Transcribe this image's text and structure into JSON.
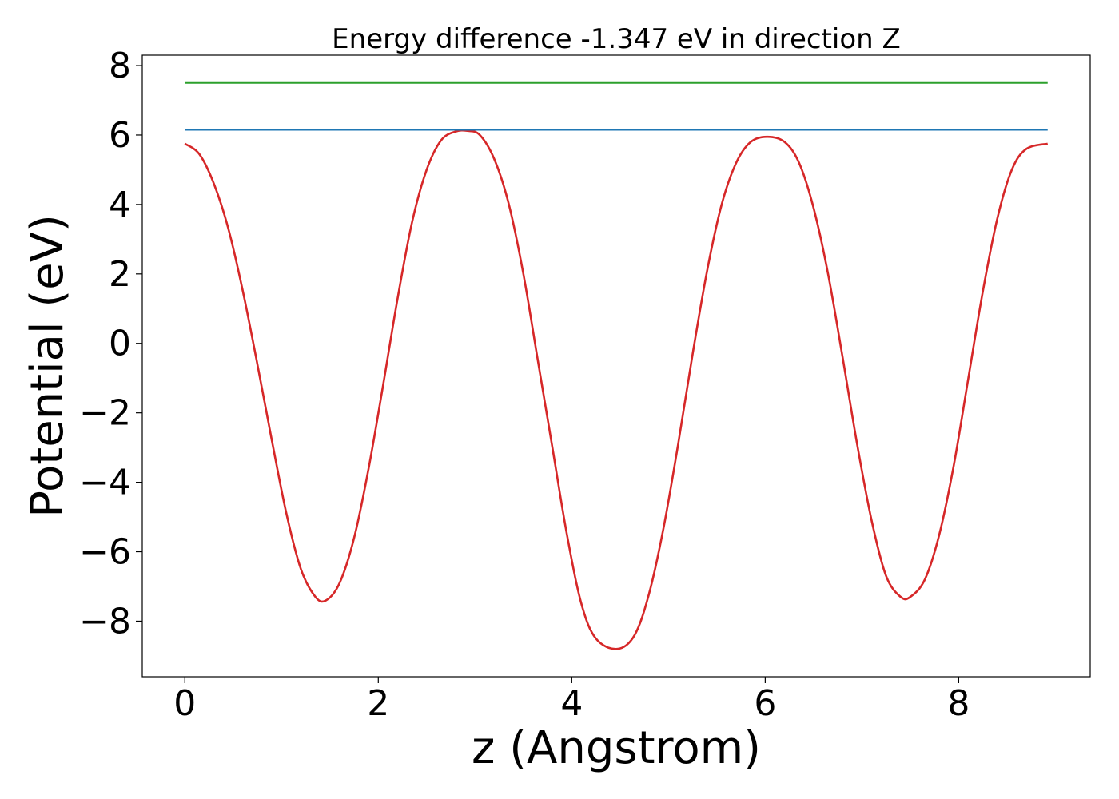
{
  "chart_data": {
    "type": "line",
    "title": "Energy difference -1.347 eV in direction Z",
    "xlabel": "z (Angstrom)",
    "ylabel": "Potential (eV)",
    "xlim": [
      -0.44,
      9.36
    ],
    "ylim": [
      -9.6,
      8.3
    ],
    "x_ticks": [
      0,
      2,
      4,
      6,
      8
    ],
    "y_ticks": [
      -8,
      -6,
      -4,
      -2,
      0,
      2,
      4,
      6,
      8
    ],
    "x_tick_labels": [
      "0",
      "2",
      "4",
      "6",
      "8"
    ],
    "y_tick_labels": [
      "−8",
      "−6",
      "−4",
      "−2",
      "0",
      "2",
      "4",
      "6",
      "8"
    ],
    "grid": false,
    "series": [
      {
        "color": "#d62728",
        "x": [
          0.0,
          0.15,
          0.3,
          0.45,
          0.6,
          0.75,
          0.9,
          1.05,
          1.2,
          1.35,
          1.46,
          1.6,
          1.75,
          1.9,
          2.05,
          2.2,
          2.35,
          2.5,
          2.65,
          2.8,
          2.92,
          3.05,
          3.2,
          3.35,
          3.5,
          3.65,
          3.8,
          3.95,
          4.1,
          4.25,
          4.47,
          4.65,
          4.8,
          4.95,
          5.1,
          5.25,
          5.4,
          5.55,
          5.7,
          5.85,
          6.02,
          6.2,
          6.35,
          6.5,
          6.65,
          6.8,
          6.95,
          7.1,
          7.25,
          7.4,
          7.5,
          7.65,
          7.8,
          7.95,
          8.1,
          8.25,
          8.4,
          8.55,
          8.7,
          8.92
        ],
        "values": [
          5.75,
          5.45,
          4.6,
          3.3,
          1.5,
          -0.6,
          -2.8,
          -4.9,
          -6.5,
          -7.3,
          -7.4,
          -6.9,
          -5.6,
          -3.6,
          -1.2,
          1.3,
          3.5,
          5.0,
          5.85,
          6.1,
          6.12,
          6.0,
          5.3,
          4.0,
          2.0,
          -0.5,
          -3.0,
          -5.5,
          -7.5,
          -8.5,
          -8.8,
          -8.4,
          -7.2,
          -5.3,
          -2.9,
          -0.3,
          2.1,
          4.0,
          5.2,
          5.8,
          5.95,
          5.8,
          5.2,
          3.9,
          2.0,
          -0.4,
          -2.9,
          -5.1,
          -6.7,
          -7.3,
          -7.3,
          -6.8,
          -5.5,
          -3.5,
          -1.0,
          1.5,
          3.6,
          5.0,
          5.6,
          5.75
        ]
      },
      {
        "color": "#1f77b4",
        "x": [
          0.0,
          8.92
        ],
        "values": [
          6.15,
          6.15
        ]
      },
      {
        "color": "#2ca02c",
        "x": [
          0.0,
          8.92
        ],
        "values": [
          7.5,
          7.5
        ]
      }
    ]
  }
}
